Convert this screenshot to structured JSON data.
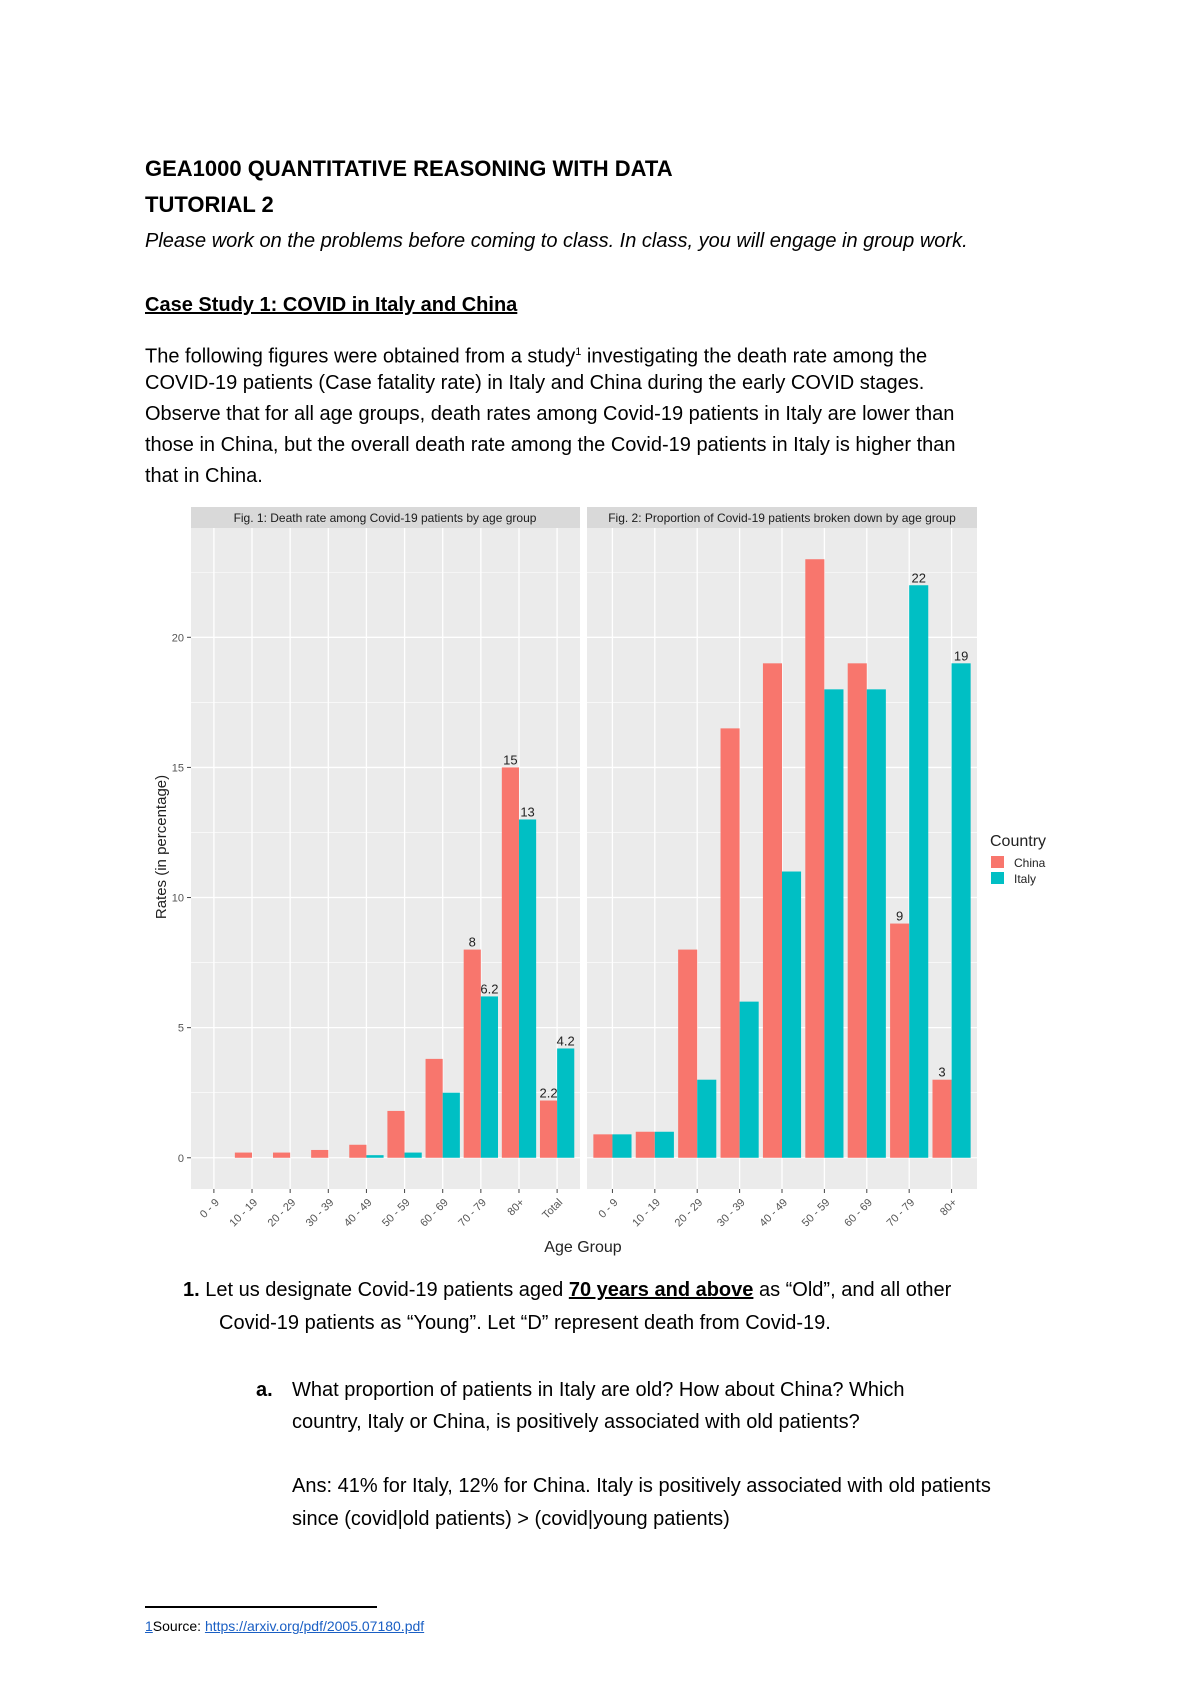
{
  "header": {
    "course": "GEA1000 QUANTITATIVE REASONING WITH DATA",
    "tutorial": "TUTORIAL 2",
    "instruction": "Please work on the problems before coming to class. In class, you will engage in group work."
  },
  "case_study": {
    "title": "Case Study 1: COVID in Italy and China",
    "paragraph_lines": [
      "The following figures were obtained from a study",
      " investigating the death rate among the",
      "COVID-19 patients (Case fatality rate) in Italy and China during the early COVID stages.",
      "Observe that for all age groups, death rates among Covid-19 patients in Italy are lower than",
      "those in China, but the overall death rate among the Covid-19 patients in Italy is higher than",
      "that in China."
    ],
    "footnote_ref": "1"
  },
  "chart_data": [
    {
      "type": "bar",
      "title": "Fig. 1: Death rate among Covid-19 patients by age group",
      "xlabel": "Age Group",
      "ylabel": "Rates (in percentage)",
      "ylim": [
        -1.2,
        24.2
      ],
      "yticks": [
        0,
        5,
        10,
        15,
        20
      ],
      "grid": true,
      "categories": [
        "0 - 9",
        "10 - 19",
        "20 - 29",
        "30 - 39",
        "40 - 49",
        "50 - 59",
        "60 - 69",
        "70 - 79",
        "80+",
        "Total"
      ],
      "series": [
        {
          "name": "China",
          "color": "#F8766D",
          "values": [
            0,
            0.2,
            0.2,
            0.3,
            0.5,
            1.8,
            3.8,
            8,
            15,
            2.2
          ],
          "labels": [
            "",
            "",
            "",
            "",
            "",
            "",
            "",
            "8",
            "15",
            "2.2"
          ]
        },
        {
          "name": "Italy",
          "color": "#00BFC4",
          "values": [
            0,
            0,
            0,
            0,
            0.1,
            0.2,
            2.5,
            6.2,
            13,
            4.2
          ],
          "labels": [
            "",
            "",
            "",
            "",
            "",
            "",
            "",
            "6.2",
            "13",
            "4.2"
          ]
        }
      ]
    },
    {
      "type": "bar",
      "title": "Fig. 2: Proportion of Covid-19 patients broken down by age group",
      "ylim": [
        -1.2,
        24.2
      ],
      "grid": true,
      "categories": [
        "0 - 9",
        "10 - 19",
        "20 - 29",
        "30 - 39",
        "40 - 49",
        "50 - 59",
        "60 - 69",
        "70 - 79",
        "80+"
      ],
      "series": [
        {
          "name": "China",
          "color": "#F8766D",
          "values": [
            0.9,
            1.0,
            8,
            16.5,
            19,
            23,
            19,
            9,
            3
          ],
          "labels": [
            "",
            "",
            "",
            "",
            "",
            "",
            "",
            "9",
            "3"
          ]
        },
        {
          "name": "Italy",
          "color": "#00BFC4",
          "values": [
            0.9,
            1.0,
            3,
            6,
            11,
            18,
            18,
            22,
            19
          ],
          "labels": [
            "",
            "",
            "",
            "",
            "",
            "",
            "",
            "22",
            "19"
          ]
        }
      ],
      "legend": {
        "title": "Country",
        "entries": [
          "China",
          "Italy"
        ],
        "placement": "right"
      }
    }
  ],
  "question": {
    "number": "1.",
    "line1_pre": "Let us designate Covid-19 patients aged ",
    "line1_emph": "70 years and above",
    "line1_post": " as “Old”, and all other",
    "line2": "Covid-19 patients as “Young”. Let “D” represent death from Covid-19.",
    "part_a": {
      "label": "a.",
      "lines": [
        "What proportion of patients in Italy are old? How about China? Which",
        "country, Italy or China, is positively associated with old patients?"
      ],
      "answer_lines": [
        "Ans: 41% for Italy, 12% for China. Italy is positively associated with old patients",
        "since (covid|old patients) > (covid|young patients)"
      ]
    }
  },
  "footnote": {
    "number": "1",
    "label": "Source: ",
    "link": "https://arxiv.org/pdf/2005.07180.pdf"
  }
}
